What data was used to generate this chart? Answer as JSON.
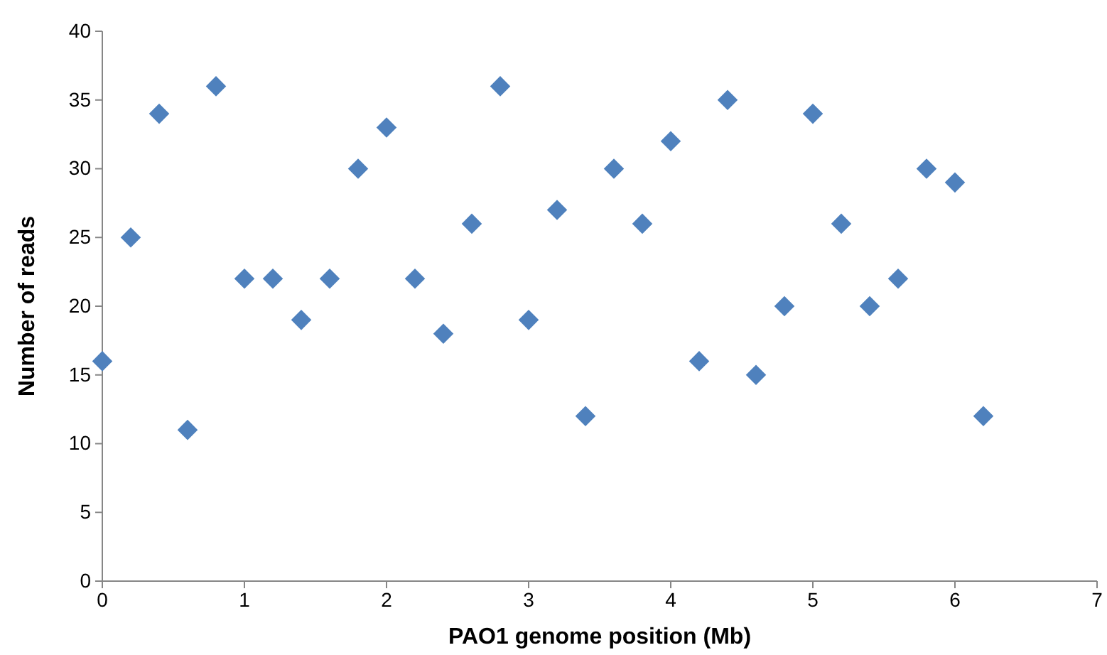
{
  "chart_data": {
    "type": "scatter",
    "xlabel": "PAO1 genome position (Mb)",
    "ylabel": "Number of reads",
    "x": [
      0,
      0.2,
      0.4,
      0.6,
      0.8,
      1.0,
      1.2,
      1.4,
      1.6,
      1.8,
      2.0,
      2.2,
      2.4,
      2.6,
      2.8,
      3.0,
      3.2,
      3.4,
      3.6,
      3.8,
      4.0,
      4.2,
      4.4,
      4.6,
      4.8,
      5.0,
      5.2,
      5.4,
      5.6,
      5.8,
      6.0,
      6.2
    ],
    "series": [
      {
        "color": "#4f81bd",
        "values": [
          16,
          25,
          34,
          11,
          36,
          22,
          22,
          19,
          22,
          30,
          33,
          22,
          18,
          26,
          36,
          19,
          27,
          12,
          30,
          26,
          32,
          16,
          35,
          15,
          20,
          34,
          26,
          20,
          22,
          30,
          29,
          12
        ]
      }
    ],
    "xlim": [
      0,
      7
    ],
    "xticks": [
      0,
      1,
      2,
      3,
      4,
      5,
      6,
      7
    ],
    "ylim": [
      0,
      40
    ],
    "yticks": [
      0,
      5,
      10,
      15,
      20,
      25,
      30,
      35,
      40
    ],
    "marker": "diamond",
    "grid": false
  }
}
